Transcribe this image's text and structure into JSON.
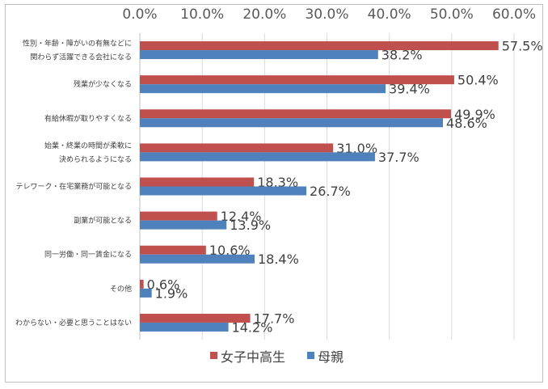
{
  "chart_data": {
    "type": "bar",
    "orientation": "horizontal",
    "categories": [
      [
        "性別・年齢・障がいの有無などに",
        "関わらず活躍できる会社になる"
      ],
      [
        "残業が少なくなる"
      ],
      [
        "有給休暇が取りやすくなる"
      ],
      [
        "始業・終業の時間が柔軟に",
        "決められるようになる"
      ],
      [
        "テレワーク・在宅業務が可能となる"
      ],
      [
        "副業が可能となる"
      ],
      [
        "同一労働・同一賃金になる"
      ],
      [
        "その他"
      ],
      [
        "わからない・必要と思うことはない"
      ]
    ],
    "series": [
      {
        "name": "女子中高生",
        "color": "#c0504d",
        "values": [
          57.5,
          50.4,
          49.9,
          31.0,
          18.3,
          12.4,
          10.6,
          0.6,
          17.7
        ],
        "labels": [
          "57.5%",
          "50.4%",
          "49.9%",
          "31.0%",
          "18.3%",
          "12.4%",
          "10.6%",
          "0.6%",
          "17.7%"
        ]
      },
      {
        "name": "母親",
        "color": "#4f81bd",
        "values": [
          38.2,
          39.4,
          48.6,
          37.7,
          26.7,
          13.9,
          18.4,
          1.9,
          14.2
        ],
        "labels": [
          "38.2%",
          "39.4%",
          "48.6%",
          "37.7%",
          "26.7%",
          "13.9%",
          "18.4%",
          "1.9%",
          "14.2%"
        ]
      }
    ],
    "ticks": [
      "0.0%",
      "10.0%",
      "20.0%",
      "30.0%",
      "40.0%",
      "50.0%",
      "60.0%"
    ],
    "xlim": [
      0,
      60
    ],
    "axis_position": "top",
    "grid": true,
    "legend_position": "bottom"
  }
}
